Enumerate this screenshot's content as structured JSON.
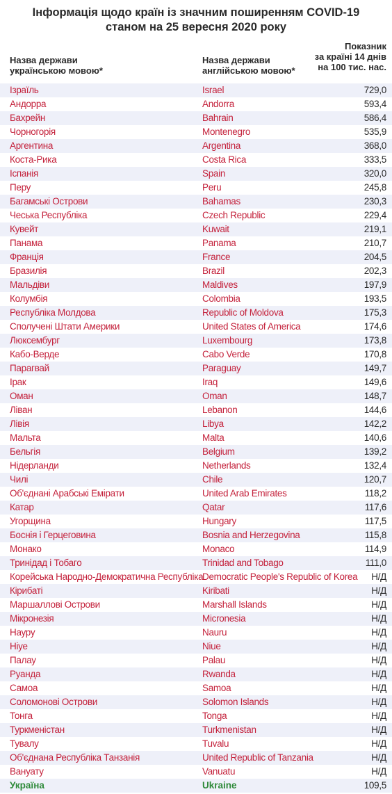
{
  "title": {
    "line1": "Інформація щодо країн із значним поширенням COVID-19",
    "line2": "станом на 25 вересня 2020 року"
  },
  "headers": {
    "ua_line1": "Назва держави",
    "ua_line2": "українською мовою*",
    "en_line1": "Назва держави",
    "en_line2": "англійською мовою*",
    "val_line1": "Показник",
    "val_line2": "за країні 14 днів",
    "val_line3": "на 100 тис. нас."
  },
  "colors": {
    "country_text": "#c4213b",
    "ukraine_text": "#2f8a3a",
    "stripe": "#eef0f9"
  },
  "rows": [
    {
      "ua": "Ізраїль",
      "en": "Israel",
      "value": "729,0"
    },
    {
      "ua": "Андорра",
      "en": "Andorra",
      "value": "593,4"
    },
    {
      "ua": "Бахрейн",
      "en": "Bahrain",
      "value": "586,4"
    },
    {
      "ua": "Чорногорія",
      "en": "Montenegro",
      "value": "535,9"
    },
    {
      "ua": "Аргентина",
      "en": "Argentina",
      "value": "368,0"
    },
    {
      "ua": "Коста-Рика",
      "en": "Costa Rica",
      "value": "333,5"
    },
    {
      "ua": "Іспанія",
      "en": "Spain",
      "value": "320,0"
    },
    {
      "ua": "Перу",
      "en": "Peru",
      "value": "245,8"
    },
    {
      "ua": "Багамські Острови",
      "en": "Bahamas",
      "value": "230,3"
    },
    {
      "ua": "Чеська Республіка",
      "en": "Czech Republic",
      "value": "229,4"
    },
    {
      "ua": "Кувейт",
      "en": "Kuwait",
      "value": "219,1"
    },
    {
      "ua": "Панама",
      "en": "Panama",
      "value": "210,7"
    },
    {
      "ua": "Франція",
      "en": "France",
      "value": "204,5"
    },
    {
      "ua": "Бразилія",
      "en": "Brazil",
      "value": "202,3"
    },
    {
      "ua": "Мальдіви",
      "en": "Maldives",
      "value": "197,9"
    },
    {
      "ua": "Колумбія",
      "en": "Colombia",
      "value": "193,5"
    },
    {
      "ua": "Республіка Молдова",
      "en": "Republic of Moldova",
      "value": "175,3"
    },
    {
      "ua": "Сполучені Штати Америки",
      "en": "United States of America",
      "value": "174,6"
    },
    {
      "ua": "Люксембург",
      "en": "Luxembourg",
      "value": "173,8"
    },
    {
      "ua": "Кабо-Верде",
      "en": "Cabo Verde",
      "value": "170,8"
    },
    {
      "ua": "Парагвай",
      "en": "Paraguay",
      "value": "149,7"
    },
    {
      "ua": "Ірак",
      "en": "Iraq",
      "value": "149,6"
    },
    {
      "ua": "Оман",
      "en": "Oman",
      "value": "148,7"
    },
    {
      "ua": "Ліван",
      "en": "Lebanon",
      "value": "144,6"
    },
    {
      "ua": "Лівія",
      "en": "Libya",
      "value": "142,2"
    },
    {
      "ua": "Мальта",
      "en": "Malta",
      "value": "140,6"
    },
    {
      "ua": "Бельгія",
      "en": "Belgium",
      "value": "139,2"
    },
    {
      "ua": "Нідерланди",
      "en": "Netherlands",
      "value": "132,4"
    },
    {
      "ua": "Чилі",
      "en": "Chile",
      "value": "120,7"
    },
    {
      "ua": "Об'єднані Арабські Емірати",
      "en": "United Arab Emirates",
      "value": "118,2"
    },
    {
      "ua": "Катар",
      "en": "Qatar",
      "value": "117,6"
    },
    {
      "ua": "Угорщина",
      "en": "Hungary",
      "value": "117,5"
    },
    {
      "ua": "Боснія і Герцеговина",
      "en": "Bosnia and Herzegovina",
      "value": "115,8"
    },
    {
      "ua": "Монако",
      "en": "Monaco",
      "value": "114,9"
    },
    {
      "ua": "Тринідад і Тобаго",
      "en": "Trinidad and Tobago",
      "value": "111,0"
    },
    {
      "ua": "Корейська Народно-Демократична Республіка",
      "en": "Democratic People's Republic of Korea",
      "value": "Н/Д"
    },
    {
      "ua": "Кірибаті",
      "en": "Kiribati",
      "value": "Н/Д"
    },
    {
      "ua": "Маршаллові Острови",
      "en": "Marshall Islands",
      "value": "Н/Д"
    },
    {
      "ua": "Мікронезія",
      "en": "Micronesia",
      "value": "Н/Д"
    },
    {
      "ua": "Науру",
      "en": "Nauru",
      "value": "Н/Д"
    },
    {
      "ua": "Ніуе",
      "en": "Niue",
      "value": "Н/Д"
    },
    {
      "ua": "Палау",
      "en": "Palau",
      "value": "Н/Д"
    },
    {
      "ua": "Руанда",
      "en": "Rwanda",
      "value": "Н/Д"
    },
    {
      "ua": "Самоа",
      "en": "Samoa",
      "value": "Н/Д"
    },
    {
      "ua": "Соломонові Острови",
      "en": "Solomon Islands",
      "value": "Н/Д"
    },
    {
      "ua": "Тонга",
      "en": "Tonga",
      "value": "Н/Д"
    },
    {
      "ua": "Туркменістан",
      "en": "Turkmenistan",
      "value": "Н/Д"
    },
    {
      "ua": "Тувалу",
      "en": "Tuvalu",
      "value": "Н/Д"
    },
    {
      "ua": "Об'єднана Республіка Танзанія",
      "en": "United Republic of Tanzania",
      "value": "Н/Д"
    },
    {
      "ua": "Вануату",
      "en": "Vanuatu",
      "value": "Н/Д"
    }
  ],
  "ukraine": {
    "ua": "Україна",
    "en": "Ukraine",
    "value": "109,5"
  }
}
